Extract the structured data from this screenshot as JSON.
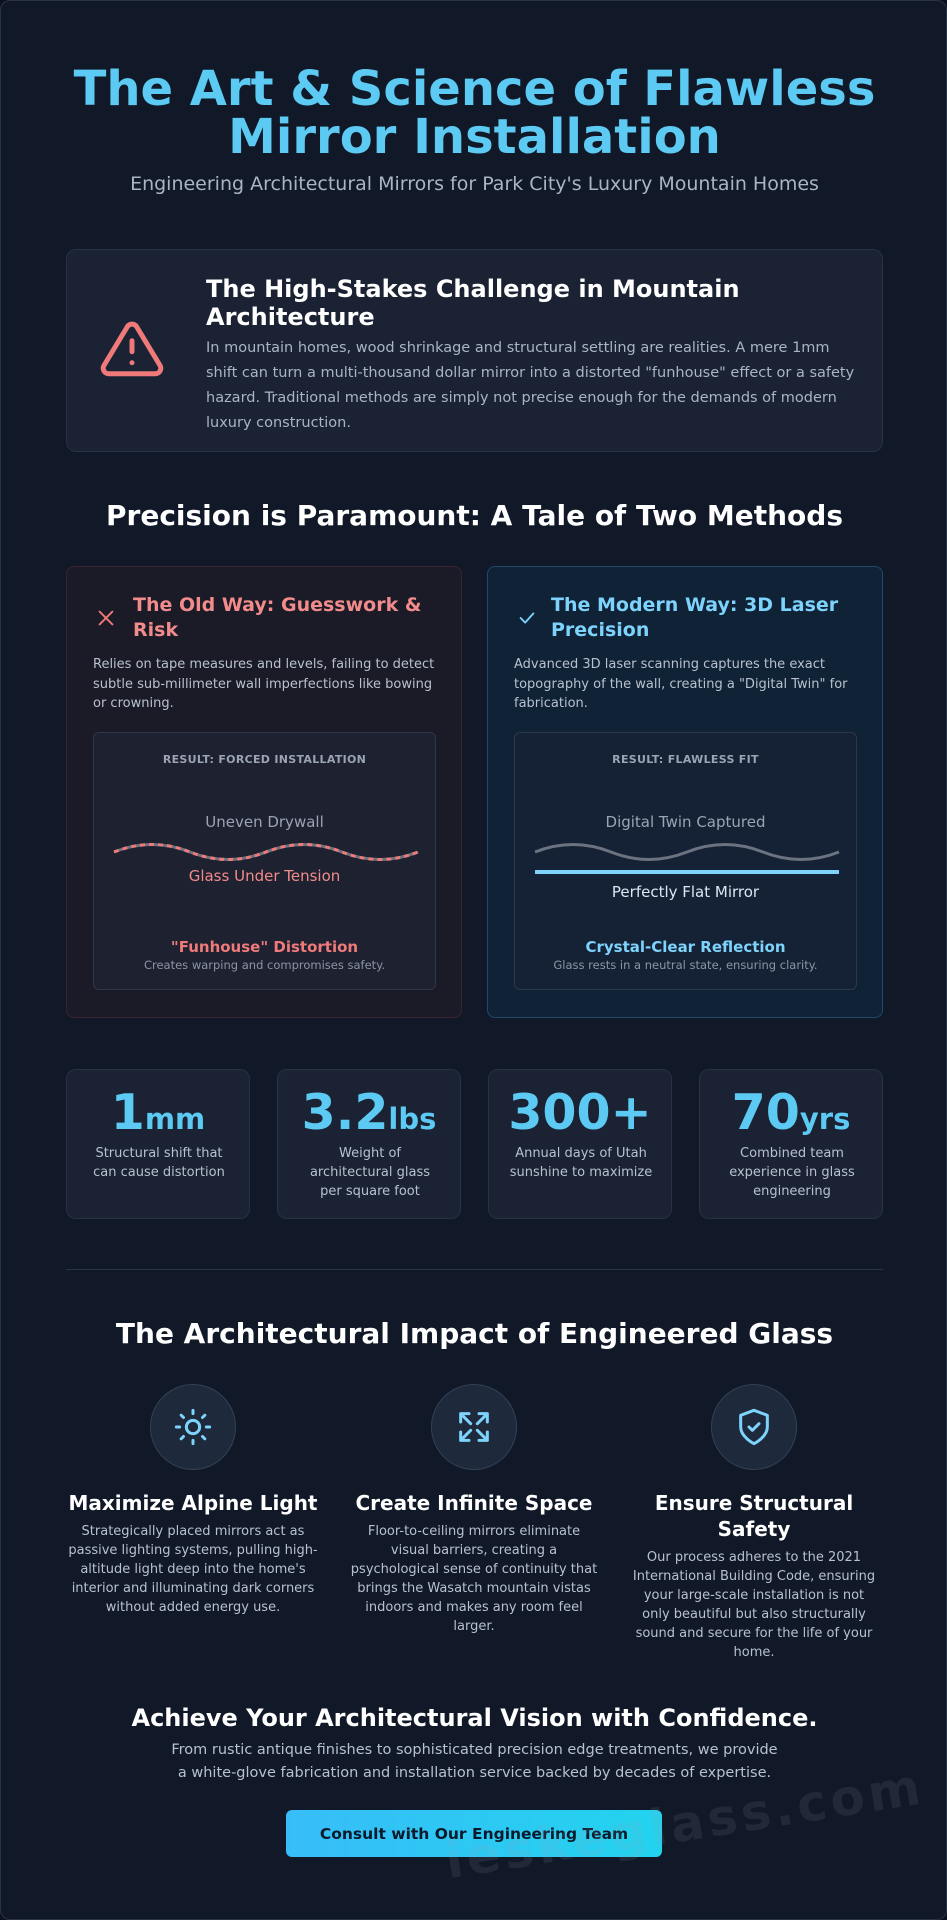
{
  "header": {
    "title": "The Art & Science of Flawless Mirror Installation",
    "subtitle": "Engineering Architectural Mirrors for Park City's Luxury Mountain Homes"
  },
  "challenge": {
    "title": "The High-Stakes Challenge in Mountain Architecture",
    "body": "In mountain homes, wood shrinkage and structural settling are realities. A mere 1mm shift can turn a multi-thousand dollar mirror into a distorted \"funhouse\" effect or a safety hazard. Traditional methods are simply not precise enough for the demands of modern luxury construction."
  },
  "comparison": {
    "heading": "Precision is Paramount: A Tale of Two Methods",
    "old": {
      "title": "The Old Way: Guesswork & Risk",
      "body": "Relies on tape measures and levels, failing to detect subtle sub-millimeter wall imperfections like bowing or crowning.",
      "result": "RESULT: FORCED INSTALLATION",
      "top_label": "Uneven Drywall",
      "bottom_label": "Glass Under Tension",
      "verdict": "\"Funhouse\" Distortion",
      "note": "Creates warping and compromises safety."
    },
    "modern": {
      "title": "The Modern Way: 3D Laser Precision",
      "body": "Advanced 3D laser scanning captures the exact topography of the wall, creating a \"Digital Twin\" for fabrication.",
      "result": "RESULT: FLAWLESS FIT",
      "top_label": "Digital Twin Captured",
      "bottom_label": "Perfectly Flat Mirror",
      "verdict": "Crystal-Clear Reflection",
      "note": "Glass rests in a neutral state, ensuring clarity."
    }
  },
  "stats": [
    {
      "value": "1",
      "unit": "mm",
      "label": "Structural shift that can cause distortion"
    },
    {
      "value": "3.2",
      "unit": "lbs",
      "label": "Weight of architectural glass per square foot"
    },
    {
      "value": "300+",
      "label": "Annual days of Utah sunshine to maximize"
    },
    {
      "value": "70",
      "unit": "yrs",
      "label": "Combined team experience in glass engineering"
    }
  ],
  "impact": {
    "heading": "The Architectural Impact of Engineered Glass",
    "features": [
      {
        "title": "Maximize Alpine Light",
        "body": "Strategically placed mirrors act as passive lighting systems, pulling high-altitude light deep into the home's interior and illuminating dark corners without added energy use."
      },
      {
        "title": "Create Infinite Space",
        "body": "Floor-to-ceiling mirrors eliminate visual barriers, creating a psychological sense of continuity that brings the Wasatch mountain vistas indoors and makes any room feel larger."
      },
      {
        "title": "Ensure Structural Safety",
        "body": "Our process adheres to the 2021 International Building Code, ensuring your large-scale installation is not only beautiful but also structurally sound and secure for the life of your home."
      }
    ]
  },
  "cta": {
    "heading": "Achieve Your Architectural Vision with Confidence.",
    "body": "From rustic antique finishes to sophisticated precision edge treatments, we provide a white-glove fabrication and installation service backed by decades of expertise.",
    "button": "Consult with Our Engineering Team"
  },
  "watermark": "ieskeglass.com"
}
